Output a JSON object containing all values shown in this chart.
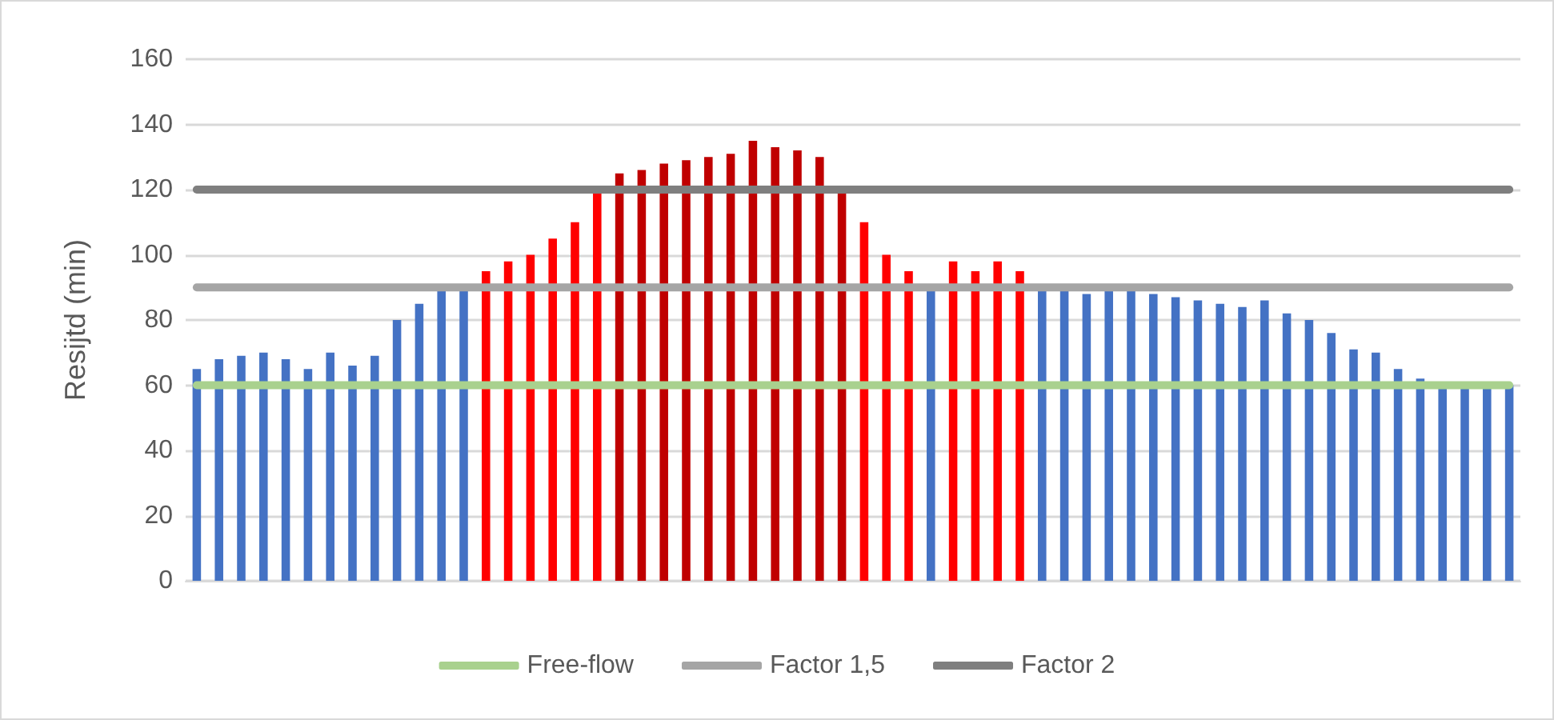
{
  "chart_data": {
    "type": "bar",
    "ylabel": "Resijtd (min)",
    "categories": [
      null,
      null,
      null,
      null,
      null,
      null,
      null,
      null,
      null,
      null,
      null,
      null,
      null,
      null,
      null,
      null,
      null,
      null,
      null,
      null,
      null,
      null,
      null,
      null,
      null,
      null,
      null,
      null,
      null,
      null,
      null,
      null,
      null,
      null,
      null,
      null,
      null,
      null,
      null,
      null,
      null,
      null,
      null,
      null,
      null,
      null,
      null,
      null,
      null,
      null,
      null,
      null,
      null,
      null,
      null,
      null,
      null,
      null,
      null,
      null
    ],
    "ylim": [
      0,
      160
    ],
    "yticks": [
      0,
      20,
      40,
      60,
      80,
      100,
      120,
      140,
      160
    ],
    "grid": "y",
    "legend": "bottom",
    "marker": "none",
    "line_style": "solid",
    "tick_labels": "y",
    "series": [
      {
        "values": [
          65,
          68,
          69,
          70,
          68,
          65,
          70,
          66,
          69,
          80,
          85,
          89,
          89,
          95,
          98,
          100,
          105,
          110,
          120,
          125,
          126,
          128,
          129,
          130,
          131,
          135,
          133,
          132,
          130,
          120,
          110,
          100,
          95,
          89,
          98,
          95,
          98,
          95,
          89,
          89,
          88,
          89,
          89,
          88,
          87,
          86,
          85,
          84,
          86,
          82,
          80,
          76,
          71,
          70,
          65,
          62,
          60,
          60,
          60,
          60
        ],
        "colors": [
          "#4472c4",
          "#4472c4",
          "#4472c4",
          "#4472c4",
          "#4472c4",
          "#4472c4",
          "#4472c4",
          "#4472c4",
          "#4472c4",
          "#4472c4",
          "#4472c4",
          "#4472c4",
          "#4472c4",
          "#ff0000",
          "#ff0000",
          "#ff0000",
          "#ff0000",
          "#ff0000",
          "#ff0000",
          "#c00000",
          "#c00000",
          "#c00000",
          "#c00000",
          "#c00000",
          "#c00000",
          "#c00000",
          "#c00000",
          "#c00000",
          "#c00000",
          "#c00000",
          "#ff0000",
          "#ff0000",
          "#ff0000",
          "#4472c4",
          "#ff0000",
          "#ff0000",
          "#ff0000",
          "#ff0000",
          "#4472c4",
          "#4472c4",
          "#4472c4",
          "#4472c4",
          "#4472c4",
          "#4472c4",
          "#4472c4",
          "#4472c4",
          "#4472c4",
          "#4472c4",
          "#4472c4",
          "#4472c4",
          "#4472c4",
          "#4472c4",
          "#4472c4",
          "#4472c4",
          "#4472c4",
          "#4472c4",
          "#4472c4",
          "#4472c4",
          "#4472c4",
          "#4472c4"
        ]
      },
      {
        "type": "line",
        "name": "Free-flow",
        "color": "#a9d18e",
        "values": [
          60,
          60,
          60,
          60,
          60,
          60,
          60,
          60,
          60,
          60,
          60,
          60,
          60,
          60,
          60,
          60,
          60,
          60,
          60,
          60,
          60,
          60,
          60,
          60,
          60,
          60,
          60,
          60,
          60,
          60,
          60,
          60,
          60,
          60,
          60,
          60,
          60,
          60,
          60,
          60,
          60,
          60,
          60,
          60,
          60,
          60,
          60,
          60,
          60,
          60,
          60,
          60,
          60,
          60,
          60,
          60,
          60,
          60,
          60,
          60
        ]
      },
      {
        "type": "line",
        "name": "Factor 1,5",
        "color": "#a5a5a5",
        "values": [
          90,
          90,
          90,
          90,
          90,
          90,
          90,
          90,
          90,
          90,
          90,
          90,
          90,
          90,
          90,
          90,
          90,
          90,
          90,
          90,
          90,
          90,
          90,
          90,
          90,
          90,
          90,
          90,
          90,
          90,
          90,
          90,
          90,
          90,
          90,
          90,
          90,
          90,
          90,
          90,
          90,
          90,
          90,
          90,
          90,
          90,
          90,
          90,
          90,
          90,
          90,
          90,
          90,
          90,
          90,
          90,
          90,
          90,
          90,
          90
        ]
      },
      {
        "type": "line",
        "name": "Factor 2",
        "color": "#7f7f7f",
        "values": [
          120,
          120,
          120,
          120,
          120,
          120,
          120,
          120,
          120,
          120,
          120,
          120,
          120,
          120,
          120,
          120,
          120,
          120,
          120,
          120,
          120,
          120,
          120,
          120,
          120,
          120,
          120,
          120,
          120,
          120,
          120,
          120,
          120,
          120,
          120,
          120,
          120,
          120,
          120,
          120,
          120,
          120,
          120,
          120,
          120,
          120,
          120,
          120,
          120,
          120,
          120,
          120,
          120,
          120,
          120,
          120,
          120,
          120,
          120,
          120
        ]
      }
    ]
  }
}
